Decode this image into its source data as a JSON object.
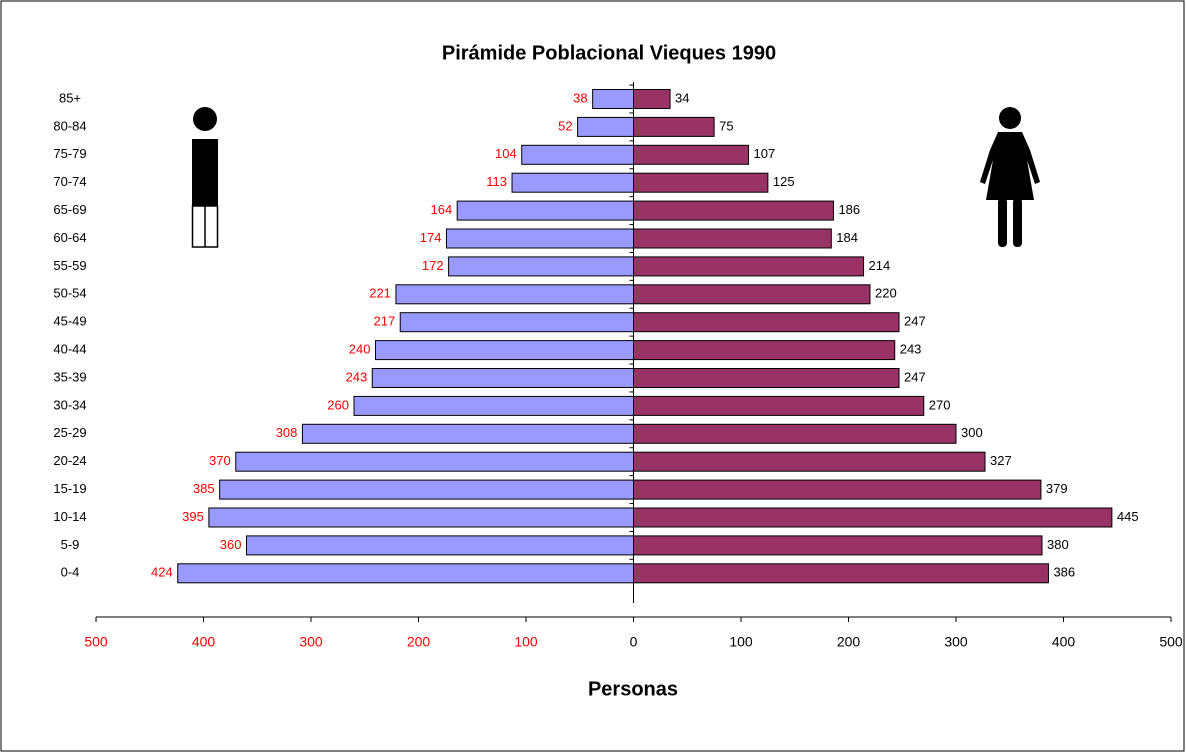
{
  "chart_data": {
    "type": "pyramid",
    "title": "Pirámide Poblacional Vieques 1990",
    "x_label": "Personas",
    "categories": [
      "85+",
      "80-84",
      "75-79",
      "70-74",
      "65-69",
      "60-64",
      "55-59",
      "50-54",
      "45-49",
      "40-44",
      "35-39",
      "30-34",
      "25-29",
      "20-24",
      "15-19",
      "10-14",
      "5-9",
      "0-4"
    ],
    "series": [
      {
        "color": "#9999ff",
        "label_color": "#ff0000",
        "side": "left",
        "values": [
          38,
          52,
          104,
          113,
          164,
          174,
          172,
          221,
          217,
          240,
          243,
          260,
          308,
          370,
          385,
          395,
          360,
          424
        ]
      },
      {
        "color": "#993366",
        "label_color": "#000000",
        "side": "right",
        "values": [
          34,
          75,
          107,
          125,
          186,
          184,
          214,
          220,
          247,
          243,
          247,
          270,
          300,
          327,
          379,
          445,
          380,
          386
        ]
      }
    ],
    "xlim": [
      -500,
      500
    ],
    "xticks": [
      {
        "value": -500,
        "label": "500"
      },
      {
        "value": -400,
        "label": "400"
      },
      {
        "value": -300,
        "label": "300"
      },
      {
        "value": -200,
        "label": "200"
      },
      {
        "value": -100,
        "label": "100"
      },
      0,
      100,
      200,
      300,
      400,
      500
    ]
  }
}
